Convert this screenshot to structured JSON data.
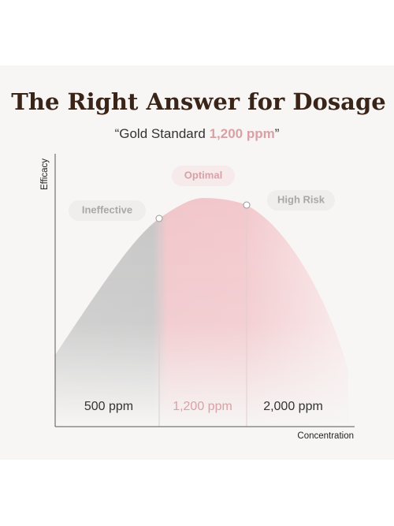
{
  "header": {
    "title": "The Right Answer for Dosage",
    "subtitle": {
      "prefix": "“Gold Standard ",
      "highlight": "1,200 ppm",
      "suffix": "”"
    }
  },
  "axes": {
    "y_label": "Efficacy",
    "x_label": "Concentration"
  },
  "zones": [
    {
      "label": "Ineffective",
      "dose": "500 ppm"
    },
    {
      "label": "Optimal",
      "dose": "1,200 ppm"
    },
    {
      "label": "High Risk",
      "dose": "2,000 ppm"
    }
  ]
}
